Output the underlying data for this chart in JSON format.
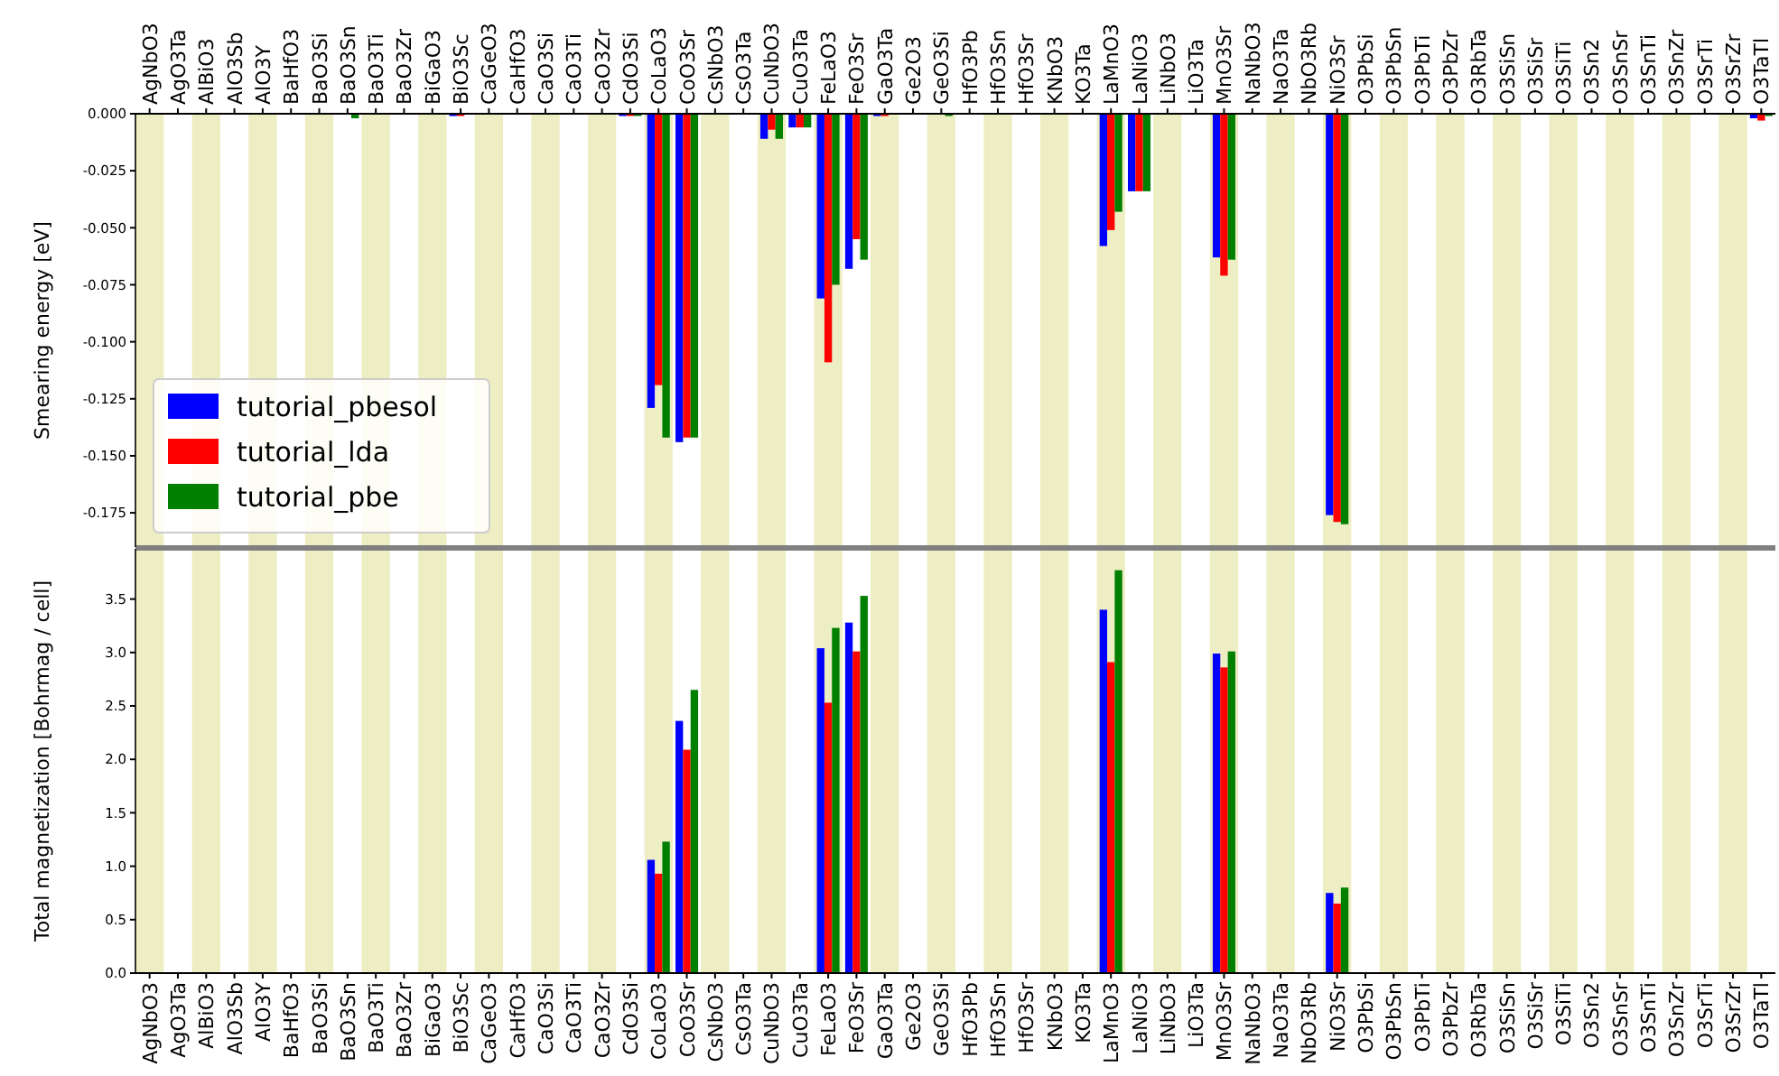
{
  "chart_data": [
    {
      "type": "bar",
      "ylabel": "Smearing energy [eV]",
      "categories": [
        "AgNbO3",
        "AgO3Ta",
        "AlBiO3",
        "AlO3Sb",
        "AlO3Y",
        "BaHfO3",
        "BaO3Si",
        "BaO3Sn",
        "BaO3Ti",
        "BaO3Zr",
        "BiGaO3",
        "BiO3Sc",
        "CaGeO3",
        "CaHfO3",
        "CaO3Si",
        "CaO3Ti",
        "CaO3Zr",
        "CdO3Si",
        "CoLaO3",
        "CoO3Sr",
        "CsNbO3",
        "CsO3Ta",
        "CuNbO3",
        "CuO3Ta",
        "FeLaO3",
        "FeO3Sr",
        "GaO3Ta",
        "Ge2O3",
        "GeO3Si",
        "HfO3Pb",
        "HfO3Sn",
        "HfO3Sr",
        "KNbO3",
        "KO3Ta",
        "LaMnO3",
        "LaNiO3",
        "LiNbO3",
        "LiO3Ta",
        "MnO3Sr",
        "NaNbO3",
        "NaO3Ta",
        "NbO3Rb",
        "NiO3Sr",
        "O3PbSi",
        "O3PbSn",
        "O3PbTi",
        "O3PbZr",
        "O3RbTa",
        "O3SiSn",
        "O3SiSr",
        "O3SiTi",
        "O3Sn2",
        "O3SnSr",
        "O3SnTi",
        "O3SnZr",
        "O3SrTi",
        "O3SrZr",
        "O3TaTl"
      ],
      "series": [
        {
          "name": "tutorial_pbesol",
          "color": "#0000ff",
          "values": [
            0,
            0,
            0,
            0,
            0,
            0,
            0,
            0,
            0,
            0,
            0,
            -0.001,
            0,
            0,
            0,
            0,
            0,
            -0.001,
            -0.129,
            -0.144,
            0,
            0,
            -0.011,
            -0.006,
            -0.081,
            -0.068,
            -0.001,
            0,
            0,
            0,
            0,
            0,
            0,
            0,
            -0.058,
            -0.034,
            0,
            0,
            -0.063,
            0,
            0,
            0,
            -0.176,
            0,
            0,
            0,
            0,
            0,
            0,
            0,
            0,
            0,
            0,
            0,
            0,
            0,
            0,
            -0.002
          ]
        },
        {
          "name": "tutorial_lda",
          "color": "#ff0000",
          "values": [
            0,
            0,
            0,
            0,
            0,
            0,
            0,
            0,
            0,
            0,
            0,
            -0.001,
            0,
            0,
            0,
            0,
            0,
            -0.001,
            -0.119,
            -0.142,
            0,
            0,
            -0.007,
            -0.006,
            -0.109,
            -0.055,
            -0.001,
            0,
            0,
            0,
            0,
            0,
            0,
            0,
            -0.051,
            -0.034,
            0,
            0,
            -0.071,
            0,
            0,
            0,
            -0.179,
            0,
            0,
            0,
            0,
            0,
            0,
            0,
            0,
            0,
            0,
            0,
            0,
            0,
            0,
            -0.003
          ]
        },
        {
          "name": "tutorial_pbe",
          "color": "#008000",
          "values": [
            0,
            0,
            0,
            0,
            0,
            0,
            0,
            -0.002,
            0,
            0,
            0,
            0,
            0,
            0,
            0,
            0,
            0,
            -0.001,
            -0.142,
            -0.142,
            0,
            0,
            -0.011,
            -0.006,
            -0.075,
            -0.064,
            0,
            0,
            -0.001,
            0,
            0,
            0,
            0,
            0,
            -0.043,
            -0.034,
            0,
            0,
            -0.064,
            0,
            0,
            0,
            -0.18,
            0,
            0,
            0,
            0,
            0,
            0,
            0,
            0,
            0,
            0,
            0,
            0,
            0,
            0,
            -0.001
          ]
        }
      ],
      "ylim": [
        -0.19,
        0
      ],
      "yticks": [
        {
          "value": 0,
          "label": "0.000"
        },
        {
          "value": -0.025,
          "label": "-0.025"
        },
        {
          "value": -0.05,
          "label": "-0.050"
        },
        {
          "value": -0.075,
          "label": "-0.075"
        },
        {
          "value": -0.1,
          "label": "-0.100"
        },
        {
          "value": -0.125,
          "label": "-0.125"
        },
        {
          "value": -0.15,
          "label": "-0.150"
        },
        {
          "value": -0.175,
          "label": "-0.175"
        }
      ],
      "bands": [
        {
          "axis": "x",
          "from": "AgNbO3",
          "to": "AgNbO3",
          "color": "#eeeec4"
        },
        {
          "axis": "x",
          "from": "AlBiO3",
          "to": "AlBiO3",
          "color": "#eeeec4"
        },
        {
          "axis": "x",
          "from": "AlO3Y",
          "to": "AlO3Y",
          "color": "#eeeec4"
        },
        {
          "axis": "x",
          "from": "BaO3Si",
          "to": "BaO3Si",
          "color": "#eeeec4"
        },
        {
          "axis": "x",
          "from": "BaO3Ti",
          "to": "BaO3Ti",
          "color": "#eeeec4"
        },
        {
          "axis": "x",
          "from": "BiGaO3",
          "to": "BiGaO3",
          "color": "#eeeec4"
        },
        {
          "axis": "x",
          "from": "CaGeO3",
          "to": "CaGeO3",
          "color": "#eeeec4"
        },
        {
          "axis": "x",
          "from": "CaO3Si",
          "to": "CaO3Si",
          "color": "#eeeec4"
        },
        {
          "axis": "x",
          "from": "CaO3Zr",
          "to": "CaO3Zr",
          "color": "#eeeec4"
        },
        {
          "axis": "x",
          "from": "CoLaO3",
          "to": "CoLaO3",
          "color": "#eeeec4"
        },
        {
          "axis": "x",
          "from": "CsNbO3",
          "to": "CsNbO3",
          "color": "#eeeec4"
        },
        {
          "axis": "x",
          "from": "CuNbO3",
          "to": "CuNbO3",
          "color": "#eeeec4"
        },
        {
          "axis": "x",
          "from": "FeLaO3",
          "to": "FeLaO3",
          "color": "#eeeec4"
        },
        {
          "axis": "x",
          "from": "GaO3Ta",
          "to": "GaO3Ta",
          "color": "#eeeec4"
        },
        {
          "axis": "x",
          "from": "GeO3Si",
          "to": "GeO3Si",
          "color": "#eeeec4"
        },
        {
          "axis": "x",
          "from": "HfO3Sn",
          "to": "HfO3Sn",
          "color": "#eeeec4"
        },
        {
          "axis": "x",
          "from": "KNbO3",
          "to": "KNbO3",
          "color": "#eeeec4"
        },
        {
          "axis": "x",
          "from": "LaMnO3",
          "to": "LaMnO3",
          "color": "#eeeec4"
        },
        {
          "axis": "x",
          "from": "LiNbO3",
          "to": "LiNbO3",
          "color": "#eeeec4"
        },
        {
          "axis": "x",
          "from": "MnO3Sr",
          "to": "MnO3Sr",
          "color": "#eeeec4"
        },
        {
          "axis": "x",
          "from": "NaO3Ta",
          "to": "NaO3Ta",
          "color": "#eeeec4"
        },
        {
          "axis": "x",
          "from": "NiO3Sr",
          "to": "NiO3Sr",
          "color": "#eeeec4"
        },
        {
          "axis": "x",
          "from": "O3PbSn",
          "to": "O3PbSn",
          "color": "#eeeec4"
        },
        {
          "axis": "x",
          "from": "O3PbZr",
          "to": "O3PbZr",
          "color": "#eeeec4"
        },
        {
          "axis": "x",
          "from": "O3SiSn",
          "to": "O3SiSn",
          "color": "#eeeec4"
        },
        {
          "axis": "x",
          "from": "O3SiTi",
          "to": "O3SiTi",
          "color": "#eeeec4"
        },
        {
          "axis": "x",
          "from": "O3SnSr",
          "to": "O3SnSr",
          "color": "#eeeec4"
        },
        {
          "axis": "x",
          "from": "O3SnZr",
          "to": "O3SnZr",
          "color": "#eeeec4"
        },
        {
          "axis": "x",
          "from": "O3SrZr",
          "to": "O3SrZr",
          "color": "#eeeec4"
        }
      ],
      "legend": "bottom left"
    },
    {
      "type": "bar",
      "ylabel": "Total magnetization [Bohrmag / cell]",
      "categories": [
        "AgNbO3",
        "AgO3Ta",
        "AlBiO3",
        "AlO3Sb",
        "AlO3Y",
        "BaHfO3",
        "BaO3Si",
        "BaO3Sn",
        "BaO3Ti",
        "BaO3Zr",
        "BiGaO3",
        "BiO3Sc",
        "CaGeO3",
        "CaHfO3",
        "CaO3Si",
        "CaO3Ti",
        "CaO3Zr",
        "CdO3Si",
        "CoLaO3",
        "CoO3Sr",
        "CsNbO3",
        "CsO3Ta",
        "CuNbO3",
        "CuO3Ta",
        "FeLaO3",
        "FeO3Sr",
        "GaO3Ta",
        "Ge2O3",
        "GeO3Si",
        "HfO3Pb",
        "HfO3Sn",
        "HfO3Sr",
        "KNbO3",
        "KO3Ta",
        "LaMnO3",
        "LaNiO3",
        "LiNbO3",
        "LiO3Ta",
        "MnO3Sr",
        "NaNbO3",
        "NaO3Ta",
        "NbO3Rb",
        "NiO3Sr",
        "O3PbSi",
        "O3PbSn",
        "O3PbTi",
        "O3PbZr",
        "O3RbTa",
        "O3SiSn",
        "O3SiSr",
        "O3SiTi",
        "O3Sn2",
        "O3SnSr",
        "O3SnTi",
        "O3SnZr",
        "O3SrTi",
        "O3SrZr",
        "O3TaTl"
      ],
      "series": [
        {
          "color": "#0000ff",
          "values": [
            0,
            0,
            0,
            0,
            0,
            0,
            0,
            0,
            0,
            0,
            0,
            0,
            0,
            0,
            0,
            0,
            0,
            0,
            1.06,
            2.36,
            0,
            0,
            0,
            0,
            3.04,
            3.28,
            0,
            0,
            0,
            0,
            0,
            0,
            0,
            0,
            3.4,
            0,
            0,
            0,
            2.99,
            0,
            0,
            0,
            0.75,
            0,
            0,
            0,
            0,
            0,
            0,
            0,
            0,
            0,
            0,
            0,
            0,
            0,
            0,
            0
          ]
        },
        {
          "color": "#ff0000",
          "values": [
            0,
            0,
            0,
            0,
            0,
            0,
            0,
            0,
            0,
            0,
            0,
            0,
            0,
            0,
            0,
            0,
            0,
            0,
            0.93,
            2.09,
            0,
            0,
            0,
            0,
            2.53,
            3.01,
            0,
            0,
            0,
            0,
            0,
            0,
            0,
            0,
            2.91,
            0,
            0,
            0,
            2.86,
            0,
            0,
            0,
            0.65,
            0,
            0,
            0,
            0,
            0,
            0,
            0,
            0,
            0,
            0,
            0,
            0,
            0,
            0,
            0
          ]
        },
        {
          "color": "#008000",
          "values": [
            0,
            0,
            0,
            0,
            0,
            0,
            0,
            0,
            0,
            0,
            0,
            0,
            0,
            0,
            0,
            0,
            0,
            0,
            1.23,
            2.65,
            0,
            0,
            0,
            0,
            3.23,
            3.53,
            0,
            0,
            0,
            0,
            0,
            0,
            0,
            0,
            3.77,
            0,
            0,
            0,
            3.01,
            0,
            0,
            0,
            0.8,
            0,
            0,
            0,
            0,
            0,
            0,
            0,
            0,
            0,
            0,
            0,
            0,
            0,
            0,
            0
          ]
        }
      ],
      "ylim": [
        0,
        3.97
      ],
      "yticks": [
        {
          "value": 0,
          "label": "0.0"
        },
        {
          "value": 0.5,
          "label": "0.5"
        },
        {
          "value": 1,
          "label": "1.0"
        },
        {
          "value": 1.5,
          "label": "1.5"
        },
        {
          "value": 2,
          "label": "2.0"
        },
        {
          "value": 2.5,
          "label": "2.5"
        },
        {
          "value": 3,
          "label": "3.0"
        },
        {
          "value": 3.5,
          "label": "3.5"
        }
      ],
      "bands": [
        {
          "axis": "x",
          "from": "AgNbO3",
          "to": "AgNbO3",
          "color": "#eeeec4"
        },
        {
          "axis": "x",
          "from": "AlBiO3",
          "to": "AlBiO3",
          "color": "#eeeec4"
        },
        {
          "axis": "x",
          "from": "AlO3Y",
          "to": "AlO3Y",
          "color": "#eeeec4"
        },
        {
          "axis": "x",
          "from": "BaO3Si",
          "to": "BaO3Si",
          "color": "#eeeec4"
        },
        {
          "axis": "x",
          "from": "BaO3Ti",
          "to": "BaO3Ti",
          "color": "#eeeec4"
        },
        {
          "axis": "x",
          "from": "BiGaO3",
          "to": "BiGaO3",
          "color": "#eeeec4"
        },
        {
          "axis": "x",
          "from": "CaGeO3",
          "to": "CaGeO3",
          "color": "#eeeec4"
        },
        {
          "axis": "x",
          "from": "CaO3Si",
          "to": "CaO3Si",
          "color": "#eeeec4"
        },
        {
          "axis": "x",
          "from": "CaO3Zr",
          "to": "CaO3Zr",
          "color": "#eeeec4"
        },
        {
          "axis": "x",
          "from": "CoLaO3",
          "to": "CoLaO3",
          "color": "#eeeec4"
        },
        {
          "axis": "x",
          "from": "CsNbO3",
          "to": "CsNbO3",
          "color": "#eeeec4"
        },
        {
          "axis": "x",
          "from": "CuNbO3",
          "to": "CuNbO3",
          "color": "#eeeec4"
        },
        {
          "axis": "x",
          "from": "FeLaO3",
          "to": "FeLaO3",
          "color": "#eeeec4"
        },
        {
          "axis": "x",
          "from": "GaO3Ta",
          "to": "GaO3Ta",
          "color": "#eeeec4"
        },
        {
          "axis": "x",
          "from": "GeO3Si",
          "to": "GeO3Si",
          "color": "#eeeec4"
        },
        {
          "axis": "x",
          "from": "HfO3Sn",
          "to": "HfO3Sn",
          "color": "#eeeec4"
        },
        {
          "axis": "x",
          "from": "KNbO3",
          "to": "KNbO3",
          "color": "#eeeec4"
        },
        {
          "axis": "x",
          "from": "LaMnO3",
          "to": "LaMnO3",
          "color": "#eeeec4"
        },
        {
          "axis": "x",
          "from": "LiNbO3",
          "to": "LiNbO3",
          "color": "#eeeec4"
        },
        {
          "axis": "x",
          "from": "MnO3Sr",
          "to": "MnO3Sr",
          "color": "#eeeec4"
        },
        {
          "axis": "x",
          "from": "NaO3Ta",
          "to": "NaO3Ta",
          "color": "#eeeec4"
        },
        {
          "axis": "x",
          "from": "NiO3Sr",
          "to": "NiO3Sr",
          "color": "#eeeec4"
        },
        {
          "axis": "x",
          "from": "O3PbSn",
          "to": "O3PbSn",
          "color": "#eeeec4"
        },
        {
          "axis": "x",
          "from": "O3PbZr",
          "to": "O3PbZr",
          "color": "#eeeec4"
        },
        {
          "axis": "x",
          "from": "O3SiSn",
          "to": "O3SiSn",
          "color": "#eeeec4"
        },
        {
          "axis": "x",
          "from": "O3SiTi",
          "to": "O3SiTi",
          "color": "#eeeec4"
        },
        {
          "axis": "x",
          "from": "O3SnSr",
          "to": "O3SnSr",
          "color": "#eeeec4"
        },
        {
          "axis": "x",
          "from": "O3SnZr",
          "to": "O3SnZr",
          "color": "#eeeec4"
        },
        {
          "axis": "x",
          "from": "O3SrZr",
          "to": "O3SrZr",
          "color": "#eeeec4"
        }
      ]
    }
  ]
}
